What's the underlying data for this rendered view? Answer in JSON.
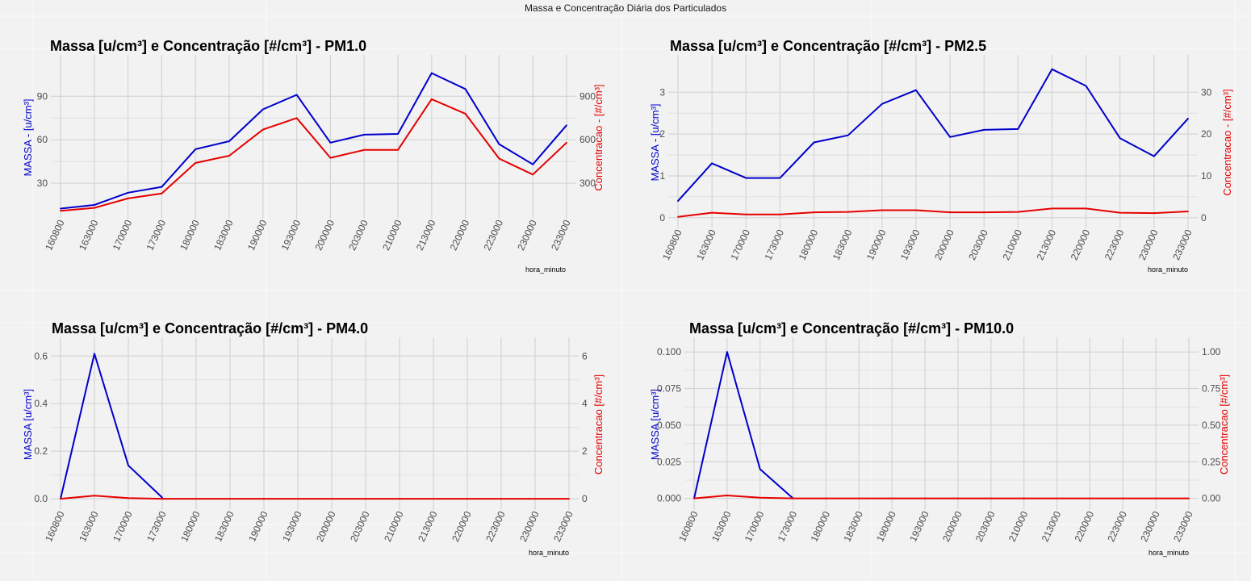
{
  "page": {
    "title": "Massa e Concentração Diária dos Particulados"
  },
  "colors": {
    "massa": "#0000cc",
    "concentracao": "#e60000",
    "grid": "#d4d4d4",
    "background": "#f2f2f2"
  },
  "chart_data": [
    {
      "type": "line",
      "title": "Massa [u/cm³] e Concentração [#/cm³] - PM1.0",
      "xlabel": "hora_minuto",
      "ylabel_left": "MASSA - [u/cm³]",
      "ylabel_right": "Concentracao - [#/cm³]",
      "ylim_left": [
        10,
        113
      ],
      "ylim_right": [
        100,
        1130
      ],
      "yticks_left": [
        30,
        60,
        90
      ],
      "yticks_right": [
        300,
        600,
        900
      ],
      "grid": true,
      "categories": [
        "160800",
        "163000",
        "170000",
        "173000",
        "180000",
        "183000",
        "190000",
        "193000",
        "200000",
        "203000",
        "210000",
        "213000",
        "220000",
        "223000",
        "230000",
        "233000"
      ],
      "series": [
        {
          "name": "MASSA",
          "axis": "left",
          "values": [
            12.5,
            15,
            23.5,
            27.5,
            53.5,
            59,
            81,
            91,
            58,
            63.5,
            64,
            106,
            95,
            57,
            43,
            70
          ]
        },
        {
          "name": "Concentracao",
          "axis": "right",
          "values": [
            110,
            130,
            195,
            230,
            440,
            490,
            670,
            750,
            475,
            530,
            530,
            880,
            780,
            470,
            360,
            580
          ]
        }
      ]
    },
    {
      "type": "line",
      "title": "Massa [u/cm³] e Concentração [#/cm³] - PM2.5",
      "xlabel": "hora_minuto",
      "ylabel_left": "MASSA - [u/cm³]",
      "ylabel_right": "Concentracao - [#/cm³]",
      "ylim_left": [
        -0.1,
        3.7
      ],
      "ylim_right": [
        -1,
        37
      ],
      "yticks_left": [
        0,
        1,
        2,
        3
      ],
      "yticks_right": [
        0,
        10,
        20,
        30
      ],
      "grid": true,
      "categories": [
        "160800",
        "163000",
        "170000",
        "173000",
        "180000",
        "183000",
        "190000",
        "193000",
        "200000",
        "203000",
        "210000",
        "213000",
        "220000",
        "223000",
        "230000",
        "233000"
      ],
      "series": [
        {
          "name": "MASSA",
          "axis": "left",
          "values": [
            0.4,
            1.3,
            0.95,
            0.95,
            1.8,
            1.97,
            2.72,
            3.05,
            1.93,
            2.1,
            2.12,
            3.55,
            3.15,
            1.9,
            1.47,
            2.37
          ]
        },
        {
          "name": "Concentracao",
          "axis": "right",
          "values": [
            0.2,
            1.2,
            0.8,
            0.8,
            1.3,
            1.4,
            1.8,
            1.8,
            1.3,
            1.3,
            1.4,
            2.2,
            2.2,
            1.2,
            1.1,
            1.5
          ]
        }
      ]
    },
    {
      "type": "line",
      "title": "Massa [u/cm³] e Concentração [#/cm³] - PM4.0",
      "xlabel": "hora_minuto",
      "ylabel_left": "MASSA [u/cm³]",
      "ylabel_right": "Concentracao [#/cm³]",
      "ylim_left": [
        -0.02,
        0.645
      ],
      "ylim_right": [
        -0.2,
        6.45
      ],
      "yticks_left": [
        0.0,
        0.2,
        0.4,
        0.6
      ],
      "yticks_right": [
        0,
        2,
        4,
        6
      ],
      "grid": true,
      "categories": [
        "160800",
        "163000",
        "170000",
        "173000",
        "180000",
        "183000",
        "190000",
        "193000",
        "200000",
        "203000",
        "210000",
        "213000",
        "220000",
        "223000",
        "230000",
        "233000"
      ],
      "series": [
        {
          "name": "MASSA",
          "axis": "left",
          "values": [
            0,
            0.61,
            0.14,
            0.005,
            null,
            null,
            null,
            null,
            null,
            null,
            null,
            null,
            null,
            null,
            null,
            null
          ]
        },
        {
          "name": "Concentracao",
          "axis": "right",
          "values": [
            0,
            0.13,
            0.03,
            0,
            0,
            0,
            0,
            0,
            0,
            0,
            0,
            0,
            0,
            0,
            0,
            0
          ]
        }
      ]
    },
    {
      "type": "line",
      "title": "Massa [u/cm³] e Concentração [#/cm³] - PM10.0",
      "xlabel": "hora_minuto",
      "ylabel_left": "MASSA [u/cm³]",
      "ylabel_right": "Concentracao [#/cm³]",
      "ylim_left": [
        -0.0035,
        0.1045
      ],
      "ylim_right": [
        -0.035,
        1.045
      ],
      "yticks_left": [
        0.0,
        0.025,
        0.05,
        0.075,
        0.1
      ],
      "ytick_labels_left": [
        "0.000",
        "0.025",
        "0.050",
        "0.075",
        "0.100"
      ],
      "yticks_right": [
        0.0,
        0.25,
        0.5,
        0.75,
        1.0
      ],
      "ytick_labels_right": [
        "0.00",
        "0.25",
        "0.50",
        "0.75",
        "1.00"
      ],
      "grid": true,
      "categories": [
        "160800",
        "163000",
        "170000",
        "173000",
        "180000",
        "183000",
        "190000",
        "193000",
        "200000",
        "203000",
        "210000",
        "213000",
        "220000",
        "223000",
        "230000",
        "233000"
      ],
      "series": [
        {
          "name": "MASSA",
          "axis": "left",
          "values": [
            0,
            0.1,
            0.02,
            0,
            null,
            null,
            null,
            null,
            null,
            null,
            null,
            null,
            null,
            null,
            null,
            null
          ]
        },
        {
          "name": "Concentracao",
          "axis": "right",
          "values": [
            0,
            0.02,
            0.005,
            0,
            0,
            0,
            0,
            0,
            0,
            0,
            0,
            0,
            0,
            0,
            0,
            0
          ]
        }
      ]
    }
  ]
}
